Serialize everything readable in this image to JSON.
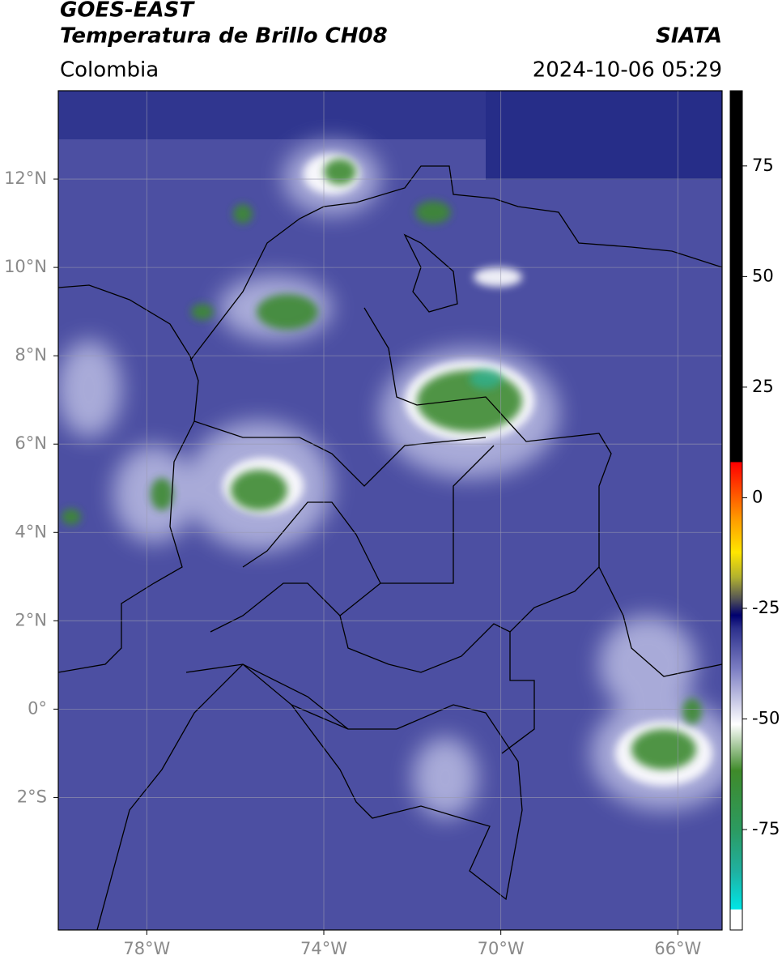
{
  "header": {
    "title_line1": "GOES-EAST",
    "title_line2": "Temperatura de Brillo CH08",
    "organization": "SIATA",
    "region": "Colombia",
    "datetime": "2024-10-06 05:29"
  },
  "map": {
    "xlim": [
      -80,
      -65
    ],
    "ylim": [
      -5,
      14
    ],
    "xticks": [
      {
        "value": -78,
        "label": "78°W"
      },
      {
        "value": -74,
        "label": "74°W"
      },
      {
        "value": -70,
        "label": "70°W"
      },
      {
        "value": -66,
        "label": "66°W"
      }
    ],
    "yticks": [
      {
        "value": 12,
        "label": "12°N"
      },
      {
        "value": 10,
        "label": "10°N"
      },
      {
        "value": 8,
        "label": "8°N"
      },
      {
        "value": 6,
        "label": "6°N"
      },
      {
        "value": 4,
        "label": "4°N"
      },
      {
        "value": 2,
        "label": "2°N"
      },
      {
        "value": 0,
        "label": "0°"
      },
      {
        "value": -2,
        "label": "2°S"
      }
    ],
    "grid": true
  },
  "colorbar": {
    "lim": [
      -97.7,
      92
    ],
    "ticks": [
      75,
      50,
      25,
      0,
      -25,
      -50,
      -75
    ]
  }
}
